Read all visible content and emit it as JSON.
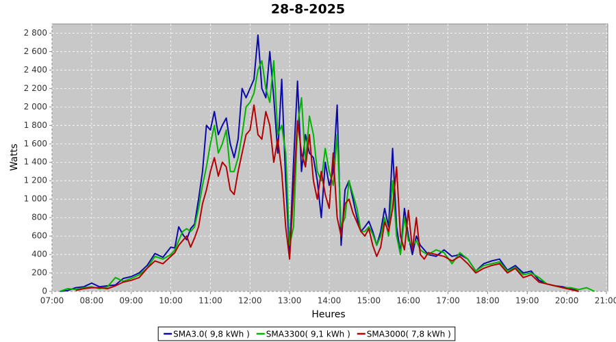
{
  "chart_data": {
    "type": "line",
    "title": "28-8-2025",
    "x_label": "Heures",
    "y_label": "Watts",
    "x": [
      7.2,
      7.4,
      7.6,
      7.8,
      8.0,
      8.2,
      8.4,
      8.6,
      8.8,
      9.0,
      9.2,
      9.4,
      9.6,
      9.8,
      10.0,
      10.1,
      10.2,
      10.3,
      10.4,
      10.5,
      10.6,
      10.7,
      10.8,
      10.9,
      11.0,
      11.1,
      11.2,
      11.3,
      11.4,
      11.5,
      11.6,
      11.7,
      11.8,
      11.9,
      12.0,
      12.1,
      12.2,
      12.3,
      12.4,
      12.5,
      12.6,
      12.7,
      12.8,
      12.9,
      13.0,
      13.1,
      13.2,
      13.3,
      13.4,
      13.5,
      13.6,
      13.7,
      13.8,
      13.9,
      14.0,
      14.1,
      14.2,
      14.3,
      14.4,
      14.5,
      14.6,
      14.7,
      14.8,
      14.9,
      15.0,
      15.1,
      15.2,
      15.3,
      15.4,
      15.5,
      15.6,
      15.7,
      15.8,
      15.9,
      16.0,
      16.1,
      16.2,
      16.3,
      16.4,
      16.5,
      16.7,
      16.9,
      17.1,
      17.3,
      17.5,
      17.7,
      17.9,
      18.1,
      18.3,
      18.5,
      18.7,
      18.9,
      19.1,
      19.3,
      19.5,
      19.7,
      19.9,
      20.1,
      20.3,
      20.5,
      20.7
    ],
    "series": [
      {
        "name": "SMA3.0( 9,8 kWh )",
        "color": "#0a0aa8",
        "values": [
          0,
          10,
          40,
          50,
          90,
          50,
          60,
          70,
          140,
          160,
          200,
          280,
          410,
          370,
          480,
          470,
          700,
          620,
          560,
          680,
          730,
          1000,
          1300,
          1800,
          1750,
          1950,
          1700,
          1800,
          1880,
          1600,
          1450,
          1650,
          2200,
          2100,
          2200,
          2300,
          2780,
          2200,
          2100,
          2600,
          2100,
          1500,
          2300,
          1200,
          400,
          1400,
          2280,
          1300,
          1700,
          1500,
          1450,
          1200,
          800,
          1400,
          1150,
          1300,
          2020,
          500,
          1100,
          1200,
          1000,
          800,
          650,
          700,
          760,
          650,
          500,
          650,
          900,
          700,
          1550,
          700,
          420,
          900,
          600,
          400,
          600,
          500,
          450,
          400,
          380,
          450,
          380,
          400,
          350,
          220,
          300,
          330,
          350,
          230,
          280,
          200,
          220,
          120,
          80,
          60,
          50,
          30,
          0,
          null,
          null
        ]
      },
      {
        "name": "SMA3300( 9,1 kWh )",
        "color": "#00b400",
        "values": [
          0,
          30,
          20,
          40,
          50,
          30,
          50,
          150,
          110,
          140,
          180,
          250,
          380,
          350,
          400,
          450,
          550,
          650,
          680,
          650,
          700,
          900,
          1150,
          1350,
          1600,
          1800,
          1500,
          1600,
          1750,
          1300,
          1300,
          1450,
          1700,
          2000,
          2050,
          2150,
          2400,
          2500,
          2200,
          2050,
          2500,
          1700,
          1800,
          1500,
          500,
          700,
          1800,
          2100,
          1400,
          1900,
          1700,
          1300,
          1200,
          1550,
          1300,
          1150,
          1700,
          700,
          800,
          1200,
          1050,
          900,
          650,
          650,
          700,
          620,
          500,
          600,
          800,
          600,
          1200,
          600,
          400,
          800,
          550,
          500,
          550,
          450,
          420,
          400,
          450,
          420,
          300,
          420,
          350,
          220,
          280,
          300,
          320,
          220,
          260,
          180,
          200,
          150,
          80,
          60,
          40,
          40,
          20,
          40,
          0
        ]
      },
      {
        "name": "SMA3000( 7,8 kWh )",
        "color": "#b40000",
        "values": [
          null,
          null,
          10,
          30,
          40,
          40,
          30,
          60,
          100,
          120,
          150,
          250,
          330,
          300,
          380,
          420,
          500,
          550,
          600,
          480,
          580,
          700,
          950,
          1100,
          1300,
          1450,
          1250,
          1400,
          1350,
          1100,
          1050,
          1300,
          1500,
          1700,
          1750,
          2020,
          1700,
          1650,
          1950,
          1800,
          1400,
          1650,
          1300,
          700,
          350,
          1100,
          1850,
          1500,
          1350,
          1700,
          1200,
          1000,
          1300,
          1050,
          900,
          1500,
          800,
          600,
          950,
          1000,
          850,
          750,
          650,
          600,
          680,
          500,
          380,
          480,
          750,
          650,
          900,
          1350,
          600,
          450,
          880,
          450,
          800,
          400,
          350,
          420,
          400,
          380,
          330,
          380,
          300,
          200,
          250,
          280,
          300,
          200,
          250,
          150,
          180,
          100,
          80,
          60,
          40,
          20,
          0,
          null,
          null
        ]
      }
    ],
    "xlim": [
      7,
      21
    ],
    "xticks": [
      {
        "value": 7,
        "label": "07:00"
      },
      {
        "value": 8,
        "label": "08:00"
      },
      {
        "value": 9,
        "label": "09:00"
      },
      {
        "value": 10,
        "label": "10:00"
      },
      {
        "value": 11,
        "label": "11:00"
      },
      {
        "value": 12,
        "label": "12:00"
      },
      {
        "value": 13,
        "label": "13:00"
      },
      {
        "value": 14,
        "label": "14:00"
      },
      {
        "value": 15,
        "label": "15:00"
      },
      {
        "value": 16,
        "label": "16:00"
      },
      {
        "value": 17,
        "label": "17:00"
      },
      {
        "value": 18,
        "label": "18:00"
      },
      {
        "value": 19,
        "label": "19:00"
      },
      {
        "value": 20,
        "label": "20:00"
      },
      {
        "value": 21,
        "label": "21:00"
      }
    ],
    "ylim": [
      0,
      2900
    ],
    "yticks": [
      0,
      200,
      400,
      600,
      800,
      {
        "value": 1000,
        "label": "1 000"
      },
      {
        "value": 1200,
        "label": "1 200"
      },
      {
        "value": 1400,
        "label": "1 400"
      },
      {
        "value": 1600,
        "label": "1 600"
      },
      {
        "value": 1800,
        "label": "1 800"
      },
      {
        "value": 2000,
        "label": "2 000"
      },
      {
        "value": 2200,
        "label": "2 200"
      },
      {
        "value": 2400,
        "label": "2 400"
      },
      {
        "value": 2600,
        "label": "2 600"
      },
      {
        "value": 2800,
        "label": "2 800"
      }
    ],
    "grid": true,
    "legend": "bottom",
    "background": "#c8c8c8"
  }
}
